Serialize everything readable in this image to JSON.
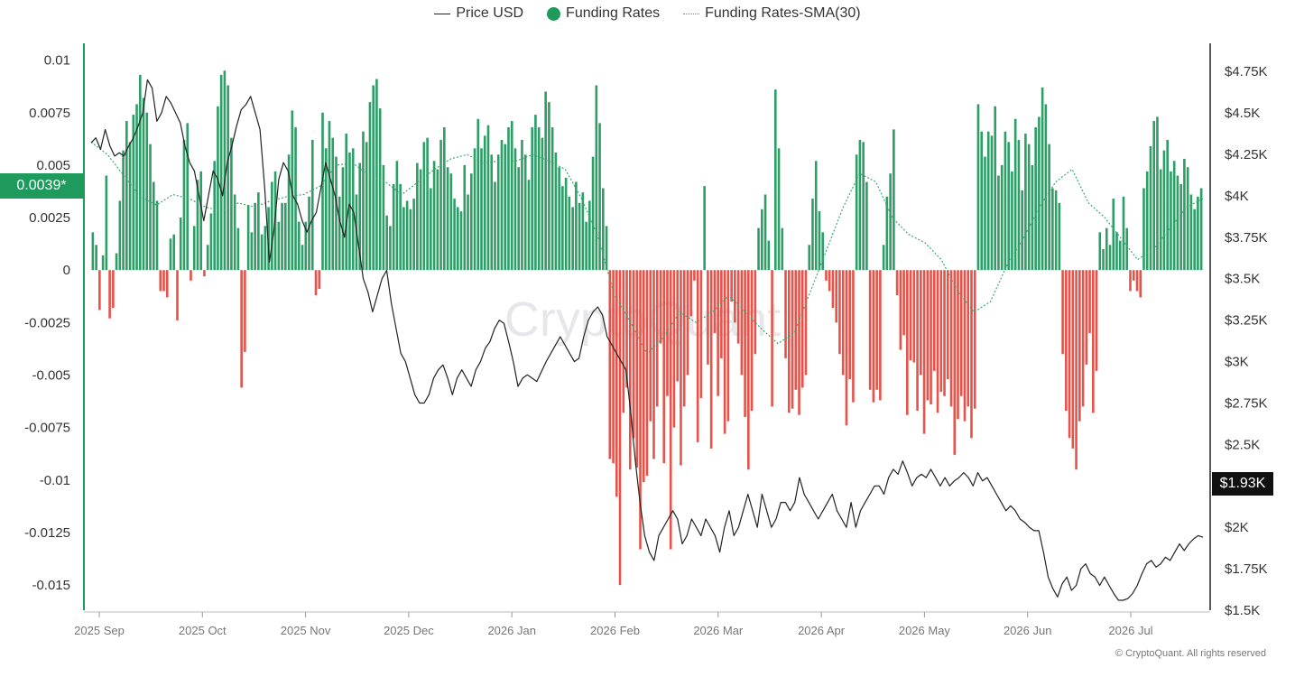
{
  "legend": {
    "price": "Price USD",
    "funding": "Funding Rates",
    "sma": "Funding Rates-SMA(30)"
  },
  "badges": {
    "funding_current": "0.0039*",
    "price_current": "$1.93K"
  },
  "watermark": "CryptoQuant",
  "copyright": "© CryptoQuant. All rights reserved",
  "colors": {
    "positive_bar": "#2e9e67",
    "negative_bar": "#e5534b",
    "price_line": "#222222",
    "sma_line": "#3aa874",
    "left_axis": "#1e9a5c",
    "right_axis": "#222222"
  },
  "chart_data": {
    "type": "bar",
    "x_labels": [
      "2025 Sep",
      "2025 Oct",
      "2025 Nov",
      "2025 Dec",
      "2026 Jan",
      "2026 Feb",
      "2026 Mar",
      "2026 Apr",
      "2026 May",
      "2026 Jun",
      "2026 Jul"
    ],
    "left_axis": {
      "ticks": [
        0.01,
        0.0075,
        0.005,
        0.0025,
        0,
        -0.0025,
        -0.005,
        -0.0075,
        -0.01,
        -0.0125,
        -0.015
      ],
      "tick_labels": [
        "0.01",
        "0.0075",
        "0.005",
        "0.0025",
        "0",
        "-0.0025",
        "-0.005",
        "-0.0075",
        "-0.01",
        "-0.0125",
        "-0.015"
      ],
      "range": [
        -0.0162,
        0.0108
      ]
    },
    "right_axis": {
      "ticks": [
        4750,
        4500,
        4250,
        4000,
        3750,
        3500,
        3250,
        3000,
        2750,
        2500,
        2250,
        2000,
        1750,
        1500
      ],
      "tick_labels": [
        "$4.75K",
        "$4.5K",
        "$4.25K",
        "$4K",
        "$3.75K",
        "$3.5K",
        "$3.25K",
        "$3K",
        "$2.75K",
        "$2.5K",
        "$2.25K",
        "$2K",
        "$1.75K",
        "$1.5K"
      ],
      "range": [
        1500,
        4920
      ]
    },
    "funding_rates": [
      0.0018,
      0.0012,
      -0.0019,
      0.0007,
      0.0045,
      -0.0023,
      -0.0018,
      0.0008,
      0.0033,
      0.0057,
      0.0071,
      0.0061,
      0.0074,
      0.0079,
      0.0093,
      0.0082,
      0.0075,
      0.006,
      0.0042,
      0.0033,
      -0.001,
      -0.001,
      -0.0013,
      0.0015,
      0.0017,
      -0.0024,
      0.0025,
      0.0062,
      0.007,
      -0.0005,
      0.0021,
      0.0043,
      0.0047,
      -0.0003,
      0.0012,
      0.0027,
      0.0052,
      0.0078,
      0.0093,
      0.0095,
      0.0088,
      0.0063,
      0.0036,
      0.002,
      -0.0056,
      -0.0039,
      0.0031,
      0.0018,
      0.0032,
      0.0037,
      0.0017,
      0.0021,
      0.003,
      0.0042,
      0.0047,
      0.0023,
      0.0032,
      0.0032,
      0.0055,
      0.0076,
      0.0068,
      0.0023,
      0.0012,
      0.0023,
      0.0035,
      0.0062,
      -0.0012,
      -0.0009,
      0.0075,
      0.0058,
      0.0071,
      0.0063,
      0.0054,
      0.0035,
      0.0049,
      0.0065,
      0.0056,
      0.0058,
      0.0036,
      0.0051,
      0.0066,
      0.0061,
      0.008,
      0.0088,
      0.0091,
      0.0077,
      0.005,
      0.0026,
      0.0021,
      0.0041,
      0.0052,
      0.0041,
      0.003,
      0.0033,
      0.0029,
      0.0034,
      0.0051,
      0.0048,
      0.0061,
      0.0063,
      0.0039,
      0.0052,
      0.0048,
      0.0062,
      0.0068,
      0.0049,
      0.0046,
      0.0034,
      0.003,
      0.0028,
      0.005,
      0.0036,
      0.0046,
      0.0058,
      0.0072,
      0.0058,
      0.0064,
      0.0069,
      0.0055,
      0.0042,
      0.0055,
      0.0062,
      0.006,
      0.0068,
      0.0071,
      0.0058,
      0.0049,
      0.0062,
      0.0055,
      0.0043,
      0.0068,
      0.0074,
      0.0068,
      0.0063,
      0.0085,
      0.008,
      0.0068,
      0.0056,
      0.0049,
      0.004,
      0.0044,
      0.0035,
      0.003,
      0.0042,
      0.0032,
      0.0037,
      0.0023,
      0.0033,
      0.0054,
      0.0088,
      0.007,
      0.0039,
      0.0021,
      -0.009,
      -0.0092,
      -0.0108,
      -0.015,
      -0.0068,
      -0.0056,
      -0.0095,
      -0.008,
      -0.0094,
      -0.0133,
      -0.0101,
      -0.0098,
      -0.0072,
      -0.009,
      -0.0065,
      -0.0035,
      -0.0092,
      -0.006,
      -0.0133,
      -0.0075,
      -0.0053,
      -0.0093,
      -0.0065,
      -0.005,
      -0.0022,
      -0.0005,
      -0.0082,
      -0.0061,
      0.004,
      -0.0045,
      -0.0085,
      -0.003,
      -0.006,
      -0.0042,
      -0.0078,
      -0.0072,
      -0.0015,
      -0.0025,
      -0.0035,
      -0.005,
      -0.007,
      -0.0095,
      -0.0067,
      -0.004,
      0.002,
      0.0029,
      0.0036,
      0.0014,
      -0.0065,
      0.0086,
      0.0058,
      0.002,
      -0.0042,
      -0.0068,
      -0.0066,
      -0.0057,
      -0.0069,
      -0.0056,
      -0.005,
      0.0012,
      0.0034,
      0.0052,
      0.0028,
      0.0018,
      -0.0005,
      -0.001,
      -0.0018,
      -0.0025,
      -0.004,
      -0.005,
      -0.0074,
      -0.0052,
      -0.0063,
      0.0055,
      0.0062,
      0.0061,
      0.0042,
      -0.0057,
      -0.0063,
      -0.0057,
      -0.0062,
      0.0012,
      0.0035,
      0.0046,
      0.0067,
      -0.0012,
      -0.0038,
      -0.0031,
      -0.0069,
      -0.0043,
      -0.0044,
      -0.0067,
      -0.005,
      -0.0078,
      -0.0062,
      -0.0064,
      -0.0048,
      -0.0068,
      -0.0058,
      -0.006,
      -0.0052,
      -0.0065,
      -0.0088,
      -0.0071,
      -0.006,
      -0.0072,
      -0.0065,
      -0.008,
      -0.0066,
      0.0079,
      0.0066,
      0.0054,
      0.0066,
      0.0064,
      0.0078,
      0.0045,
      0.005,
      0.0066,
      0.0061,
      0.0047,
      0.0072,
      0.0062,
      0.0038,
      0.0065,
      0.006,
      0.005,
      0.0068,
      0.0073,
      0.0087,
      0.0079,
      0.006,
      0.0039,
      0.0038,
      0.0032,
      -0.004,
      -0.0067,
      -0.008,
      -0.0085,
      -0.0095,
      -0.0072,
      -0.0065,
      -0.0045,
      -0.003,
      -0.0068,
      -0.0048,
      0.0018,
      0.001,
      0.002,
      0.0012,
      0.0034,
      0.0018,
      0.0014,
      0.0035,
      0.002,
      -0.001,
      -0.0005,
      -0.001,
      -0.0013,
      0.0039,
      0.0047,
      0.0059,
      0.0071,
      0.0073,
      0.0048,
      0.0057,
      0.0062,
      0.0047,
      0.0052,
      0.0045,
      0.0041,
      0.0053,
      0.0049,
      0.0036,
      0.0029,
      0.0035,
      0.0039
    ],
    "price_usd": [
      [
        0,
        4320
      ],
      [
        2,
        4350
      ],
      [
        4,
        4280
      ],
      [
        6,
        4400
      ],
      [
        8,
        4300
      ],
      [
        10,
        4240
      ],
      [
        12,
        4260
      ],
      [
        14,
        4240
      ],
      [
        16,
        4300
      ],
      [
        18,
        4350
      ],
      [
        20,
        4420
      ],
      [
        22,
        4500
      ],
      [
        24,
        4700
      ],
      [
        26,
        4650
      ],
      [
        28,
        4450
      ],
      [
        30,
        4500
      ],
      [
        32,
        4600
      ],
      [
        34,
        4560
      ],
      [
        36,
        4500
      ],
      [
        38,
        4440
      ],
      [
        40,
        4300
      ],
      [
        42,
        4200
      ],
      [
        44,
        4150
      ],
      [
        46,
        4000
      ],
      [
        48,
        3850
      ],
      [
        50,
        4000
      ],
      [
        52,
        4150
      ],
      [
        54,
        4100
      ],
      [
        56,
        4000
      ],
      [
        58,
        4200
      ],
      [
        60,
        4300
      ],
      [
        62,
        4420
      ],
      [
        64,
        4520
      ],
      [
        66,
        4550
      ],
      [
        68,
        4600
      ],
      [
        70,
        4500
      ],
      [
        72,
        4400
      ],
      [
        74,
        4050
      ],
      [
        76,
        3600
      ],
      [
        78,
        3800
      ],
      [
        80,
        4100
      ],
      [
        82,
        4200
      ],
      [
        84,
        4150
      ],
      [
        86,
        4000
      ],
      [
        88,
        3950
      ],
      [
        90,
        3850
      ],
      [
        92,
        3780
      ],
      [
        94,
        3850
      ],
      [
        96,
        3900
      ],
      [
        98,
        4050
      ],
      [
        100,
        4200
      ],
      [
        102,
        4100
      ],
      [
        104,
        4000
      ],
      [
        106,
        3850
      ],
      [
        108,
        3750
      ],
      [
        110,
        3950
      ],
      [
        112,
        3900
      ],
      [
        114,
        3700
      ],
      [
        116,
        3500
      ],
      [
        118,
        3420
      ],
      [
        120,
        3300
      ],
      [
        122,
        3400
      ],
      [
        124,
        3500
      ],
      [
        126,
        3550
      ],
      [
        128,
        3350
      ],
      [
        130,
        3200
      ],
      [
        132,
        3050
      ],
      [
        134,
        3000
      ],
      [
        136,
        2900
      ],
      [
        138,
        2800
      ],
      [
        140,
        2750
      ],
      [
        142,
        2750
      ],
      [
        144,
        2800
      ],
      [
        146,
        2900
      ],
      [
        148,
        2950
      ],
      [
        150,
        2980
      ],
      [
        152,
        2900
      ],
      [
        154,
        2800
      ],
      [
        156,
        2900
      ],
      [
        158,
        2950
      ],
      [
        160,
        2900
      ],
      [
        162,
        2850
      ],
      [
        164,
        2950
      ],
      [
        166,
        3000
      ],
      [
        168,
        3080
      ],
      [
        170,
        3120
      ],
      [
        172,
        3200
      ],
      [
        174,
        3250
      ],
      [
        176,
        3230
      ],
      [
        178,
        3120
      ],
      [
        180,
        3000
      ],
      [
        182,
        2850
      ],
      [
        184,
        2900
      ],
      [
        186,
        2920
      ],
      [
        188,
        2900
      ],
      [
        190,
        2880
      ],
      [
        192,
        2940
      ],
      [
        194,
        3000
      ],
      [
        196,
        3050
      ],
      [
        198,
        3100
      ],
      [
        200,
        3150
      ],
      [
        202,
        3100
      ],
      [
        204,
        3050
      ],
      [
        206,
        3000
      ],
      [
        208,
        3020
      ],
      [
        210,
        3150
      ],
      [
        212,
        3250
      ],
      [
        214,
        3300
      ],
      [
        216,
        3330
      ],
      [
        218,
        3280
      ],
      [
        220,
        3150
      ],
      [
        222,
        3100
      ],
      [
        224,
        3050
      ],
      [
        226,
        3000
      ],
      [
        228,
        2950
      ],
      [
        230,
        2700
      ],
      [
        232,
        2400
      ],
      [
        234,
        2150
      ],
      [
        236,
        1950
      ],
      [
        238,
        1850
      ],
      [
        240,
        1800
      ],
      [
        242,
        1950
      ],
      [
        244,
        2000
      ],
      [
        246,
        2050
      ],
      [
        248,
        2100
      ],
      [
        250,
        2050
      ],
      [
        252,
        1900
      ],
      [
        254,
        1950
      ],
      [
        256,
        2050
      ],
      [
        258,
        2000
      ],
      [
        260,
        1950
      ],
      [
        262,
        2050
      ],
      [
        264,
        2000
      ],
      [
        266,
        1950
      ],
      [
        268,
        1850
      ],
      [
        270,
        2000
      ],
      [
        272,
        2100
      ],
      [
        274,
        1950
      ],
      [
        276,
        2000
      ],
      [
        278,
        2100
      ],
      [
        280,
        2200
      ],
      [
        282,
        2100
      ],
      [
        284,
        2000
      ],
      [
        286,
        2200
      ],
      [
        288,
        2100
      ],
      [
        290,
        2000
      ],
      [
        292,
        2050
      ],
      [
        294,
        2150
      ],
      [
        296,
        2150
      ],
      [
        298,
        2100
      ],
      [
        300,
        2150
      ],
      [
        302,
        2300
      ],
      [
        304,
        2200
      ],
      [
        306,
        2150
      ],
      [
        308,
        2100
      ],
      [
        310,
        2050
      ],
      [
        312,
        2100
      ],
      [
        314,
        2150
      ],
      [
        316,
        2200
      ],
      [
        318,
        2100
      ],
      [
        320,
        2050
      ],
      [
        322,
        2000
      ],
      [
        324,
        2150
      ],
      [
        326,
        2000
      ],
      [
        328,
        2100
      ],
      [
        330,
        2150
      ],
      [
        332,
        2200
      ],
      [
        334,
        2250
      ],
      [
        336,
        2250
      ],
      [
        338,
        2200
      ],
      [
        340,
        2300
      ],
      [
        342,
        2350
      ],
      [
        344,
        2320
      ],
      [
        346,
        2400
      ],
      [
        348,
        2330
      ],
      [
        350,
        2250
      ],
      [
        352,
        2300
      ],
      [
        354,
        2320
      ],
      [
        356,
        2300
      ],
      [
        358,
        2350
      ],
      [
        360,
        2300
      ],
      [
        362,
        2250
      ],
      [
        364,
        2300
      ],
      [
        366,
        2250
      ],
      [
        368,
        2280
      ],
      [
        370,
        2300
      ],
      [
        372,
        2330
      ],
      [
        374,
        2300
      ],
      [
        376,
        2250
      ],
      [
        378,
        2330
      ],
      [
        380,
        2280
      ],
      [
        382,
        2300
      ],
      [
        384,
        2250
      ],
      [
        386,
        2200
      ],
      [
        388,
        2150
      ],
      [
        390,
        2100
      ],
      [
        392,
        2130
      ],
      [
        394,
        2100
      ],
      [
        396,
        2050
      ],
      [
        398,
        2030
      ],
      [
        400,
        2000
      ],
      [
        402,
        1980
      ],
      [
        404,
        1980
      ],
      [
        406,
        1850
      ],
      [
        408,
        1700
      ],
      [
        410,
        1630
      ],
      [
        412,
        1580
      ],
      [
        414,
        1660
      ],
      [
        416,
        1700
      ],
      [
        418,
        1620
      ],
      [
        420,
        1650
      ],
      [
        422,
        1750
      ],
      [
        424,
        1780
      ],
      [
        426,
        1720
      ],
      [
        428,
        1700
      ],
      [
        430,
        1650
      ],
      [
        432,
        1700
      ],
      [
        434,
        1650
      ],
      [
        436,
        1600
      ],
      [
        438,
        1560
      ],
      [
        440,
        1560
      ],
      [
        442,
        1570
      ],
      [
        444,
        1600
      ],
      [
        446,
        1650
      ],
      [
        448,
        1720
      ],
      [
        450,
        1780
      ],
      [
        452,
        1800
      ],
      [
        454,
        1760
      ],
      [
        456,
        1780
      ],
      [
        458,
        1820
      ],
      [
        460,
        1800
      ],
      [
        462,
        1850
      ],
      [
        464,
        1900
      ],
      [
        466,
        1860
      ],
      [
        468,
        1900
      ],
      [
        470,
        1930
      ],
      [
        472,
        1950
      ],
      [
        474,
        1940
      ]
    ],
    "funding_sma_30": [
      [
        0,
        0.0061
      ],
      [
        10,
        0.0055
      ],
      [
        20,
        0.0045
      ],
      [
        30,
        0.0035
      ],
      [
        40,
        0.0031
      ],
      [
        50,
        0.0036
      ],
      [
        60,
        0.0034
      ],
      [
        70,
        0.003
      ],
      [
        80,
        0.0028
      ],
      [
        90,
        0.0032
      ],
      [
        100,
        0.003
      ],
      [
        110,
        0.0033
      ],
      [
        120,
        0.0035
      ],
      [
        130,
        0.0036
      ],
      [
        140,
        0.004
      ],
      [
        150,
        0.005
      ],
      [
        160,
        0.0051
      ],
      [
        170,
        0.0045
      ],
      [
        180,
        0.0042
      ],
      [
        190,
        0.0036
      ],
      [
        200,
        0.0042
      ],
      [
        210,
        0.0048
      ],
      [
        220,
        0.0053
      ],
      [
        230,
        0.0055
      ],
      [
        240,
        0.0051
      ],
      [
        250,
        0.0052
      ],
      [
        260,
        0.0052
      ],
      [
        270,
        0.0055
      ],
      [
        280,
        0.0052
      ],
      [
        290,
        0.0048
      ],
      [
        300,
        0.0034
      ],
      [
        310,
        0.0016
      ],
      [
        320,
        -0.0012
      ],
      [
        330,
        -0.0025
      ],
      [
        340,
        -0.004
      ],
      [
        350,
        -0.0032
      ],
      [
        360,
        -0.002
      ],
      [
        370,
        -0.0025
      ],
      [
        380,
        -0.002
      ],
      [
        390,
        -0.0012
      ],
      [
        400,
        -0.002
      ],
      [
        410,
        -0.0028
      ],
      [
        420,
        -0.0035
      ],
      [
        430,
        -0.003
      ],
      [
        440,
        -0.001
      ],
      [
        450,
        0.001
      ],
      [
        460,
        0.003
      ],
      [
        470,
        0.0046
      ],
      [
        480,
        0.0042
      ],
      [
        490,
        0.0025
      ],
      [
        500,
        0.0017
      ],
      [
        510,
        0.0013
      ],
      [
        520,
        0.0005
      ],
      [
        530,
        -0.001
      ],
      [
        540,
        -0.002
      ],
      [
        550,
        -0.0015
      ],
      [
        560,
        0.0002
      ],
      [
        570,
        0.0015
      ],
      [
        580,
        0.003
      ],
      [
        590,
        0.0042
      ],
      [
        600,
        0.0048
      ],
      [
        610,
        0.0032
      ],
      [
        620,
        0.0025
      ],
      [
        630,
        0.0015
      ],
      [
        640,
        0.0005
      ],
      [
        650,
        0.001
      ],
      [
        660,
        0.002
      ],
      [
        670,
        0.003
      ],
      [
        680,
        0.0034
      ]
    ]
  }
}
